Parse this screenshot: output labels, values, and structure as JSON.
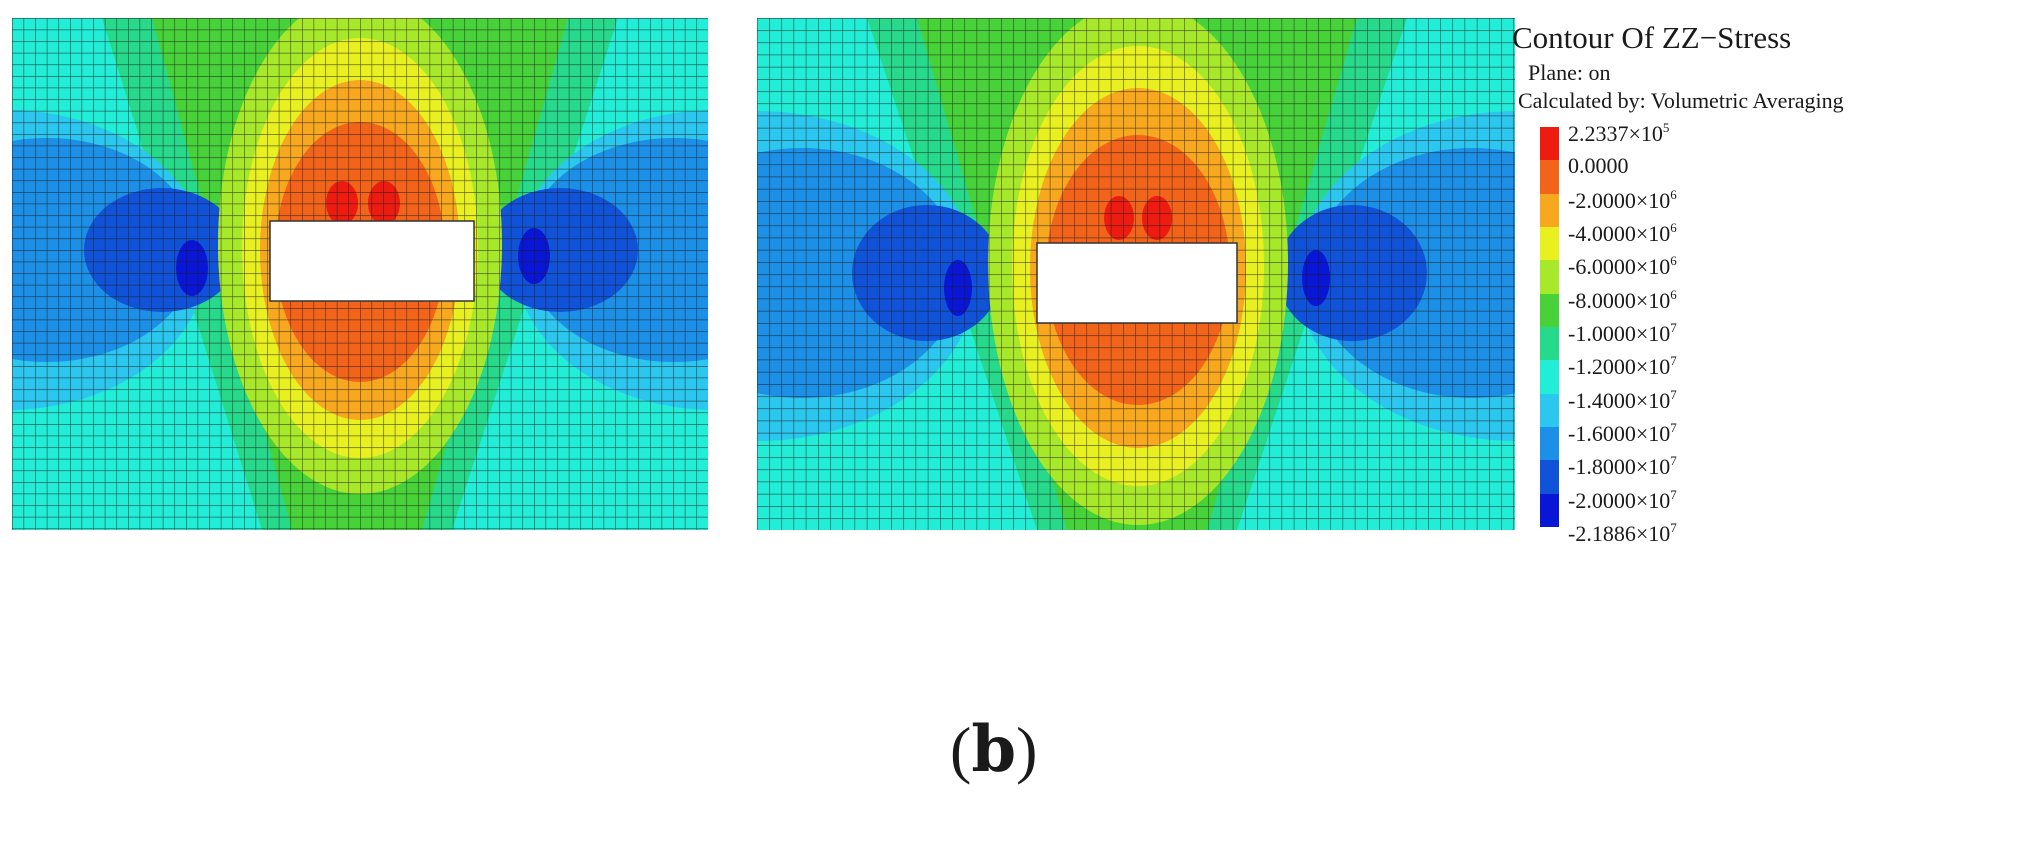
{
  "contour": {
    "title": "Contour Of ZZ−Stress",
    "plane_line": "Plane: on",
    "calculated_line": "Calculated by: Volumetric Averaging"
  },
  "legend": {
    "colors": [
      "#ee1c10",
      "#f2641a",
      "#f7a81e",
      "#e8f020",
      "#a8e82a",
      "#48d23a",
      "#27d98a",
      "#22eed8",
      "#2cc7ee",
      "#1c8fe6",
      "#1053d8",
      "#0a16d6"
    ],
    "labels": [
      {
        "mantissa": "2.2337",
        "exponent": "5"
      },
      {
        "mantissa": "0.0000",
        "exponent": ""
      },
      {
        "mantissa": "-2.0000",
        "exponent": "6"
      },
      {
        "mantissa": "-4.0000",
        "exponent": "6"
      },
      {
        "mantissa": "-6.0000",
        "exponent": "6"
      },
      {
        "mantissa": "-8.0000",
        "exponent": "6"
      },
      {
        "mantissa": "-1.0000",
        "exponent": "7"
      },
      {
        "mantissa": "-1.2000",
        "exponent": "7"
      },
      {
        "mantissa": "-1.4000",
        "exponent": "7"
      },
      {
        "mantissa": "-1.6000",
        "exponent": "7"
      },
      {
        "mantissa": "-1.8000",
        "exponent": "7"
      },
      {
        "mantissa": "-2.0000",
        "exponent": "7"
      },
      {
        "mantissa": "-2.1886",
        "exponent": "7"
      }
    ]
  },
  "caption": {
    "open": "(",
    "letter": "b",
    "close": ")"
  }
}
